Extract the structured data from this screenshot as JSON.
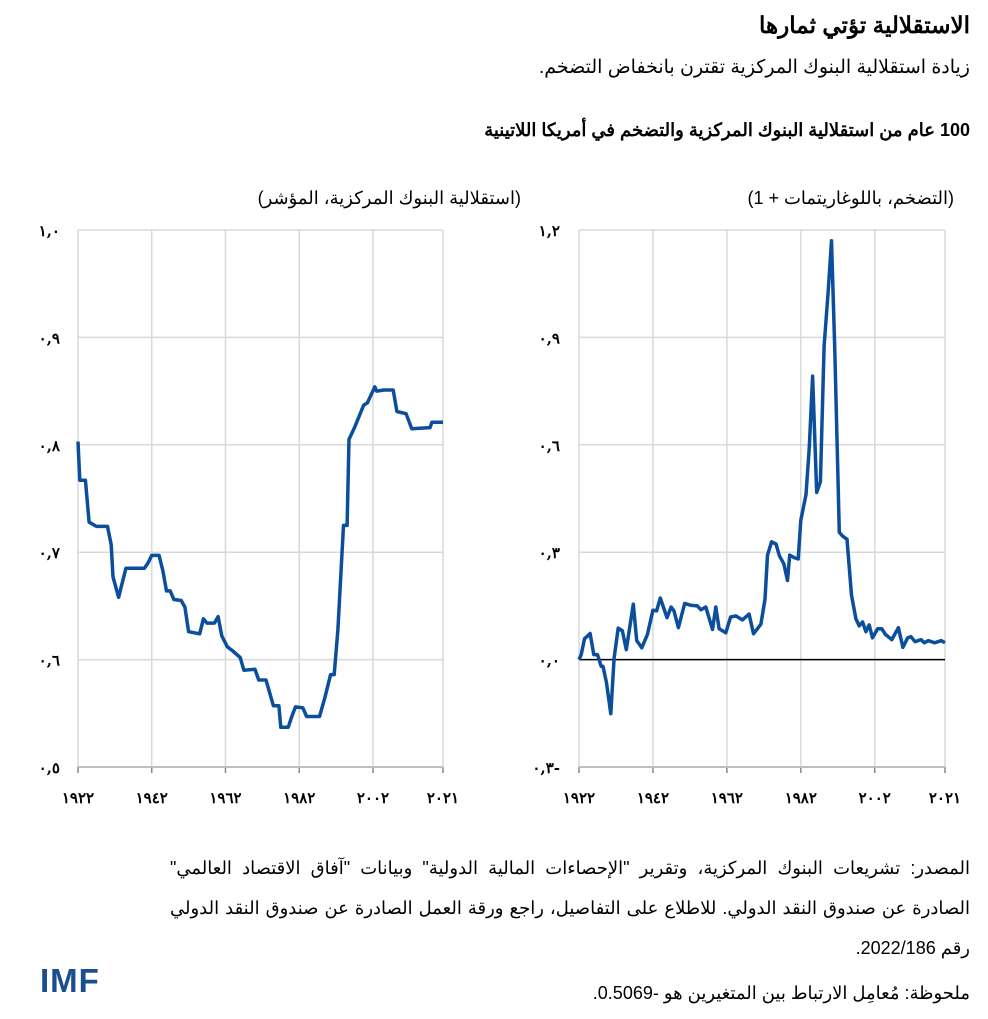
{
  "header": {
    "title": "الاستقلالية تؤتي ثمارها",
    "subtitle": "زيادة استقلالية البنوك المركزية تقترن بانخفاض التضخم."
  },
  "chart_title": "100 عام من استقلالية البنوك المركزية والتضخم في أمريكا اللاتينية",
  "colors": {
    "line": "#0b4e9c",
    "grid": "#d9d9d9",
    "zero_line": "#000000"
  },
  "chart_data": [
    {
      "type": "line",
      "ylabel": "(استقلالية البنوك المركزية، المؤشر)",
      "xlim": [
        1922,
        2021
      ],
      "ylim": [
        0.5,
        1.0
      ],
      "grid": true,
      "xticks": [
        1922,
        1942,
        1962,
        1982,
        2002,
        2021
      ],
      "xtick_labels": [
        "١٩٢٢",
        "١٩٤٢",
        "١٩٦٢",
        "١٩٨٢",
        "٢٠٠٢",
        "٢٠٢١"
      ],
      "yticks": [
        1.0,
        0.9,
        0.8,
        0.7,
        0.6,
        0.5
      ],
      "ytick_labels": [
        "١,٠",
        "٠,٩",
        "٠,٨",
        "٠,٧",
        "٠,٦",
        "٠,٥"
      ],
      "x": [
        1922,
        1922.5,
        1924,
        1925,
        1927,
        1930,
        1931,
        1931.5,
        1933,
        1935,
        1940,
        1941,
        1942,
        1944,
        1945,
        1946,
        1947,
        1948,
        1950,
        1951,
        1952,
        1955,
        1956,
        1957,
        1959,
        1960,
        1961,
        1962.5,
        1964,
        1966,
        1967,
        1970,
        1971,
        1973,
        1974,
        1975,
        1976.5,
        1977,
        1979,
        1980,
        1981,
        1983,
        1984,
        1987.5,
        1989,
        1990.5,
        1991.5,
        1992.5,
        1994,
        1995,
        1995.5,
        1997,
        1999.5,
        2000.5,
        2002.5,
        2003,
        2005,
        2007.5,
        2008.5,
        2011,
        2012.5,
        2017.5,
        2018,
        2021
      ],
      "y": [
        0.803,
        0.767,
        0.767,
        0.728,
        0.724,
        0.724,
        0.707,
        0.677,
        0.658,
        0.685,
        0.685,
        0.69,
        0.697,
        0.697,
        0.683,
        0.664,
        0.664,
        0.656,
        0.655,
        0.649,
        0.626,
        0.624,
        0.638,
        0.634,
        0.634,
        0.64,
        0.622,
        0.612,
        0.608,
        0.602,
        0.59,
        0.591,
        0.581,
        0.581,
        0.569,
        0.557,
        0.557,
        0.537,
        0.537,
        0.547,
        0.556,
        0.555,
        0.547,
        0.547,
        0.565,
        0.586,
        0.586,
        0.628,
        0.725,
        0.725,
        0.805,
        0.816,
        0.837,
        0.839,
        0.854,
        0.85,
        0.851,
        0.851,
        0.831,
        0.829,
        0.815,
        0.816,
        0.821,
        0.821
      ]
    },
    {
      "type": "line",
      "ylabel": "(التضخم، باللوغاريتمات + 1)",
      "xlim": [
        1922,
        2021
      ],
      "ylim": [
        -0.3,
        1.2
      ],
      "grid": true,
      "xticks": [
        1922,
        1942,
        1962,
        1982,
        2002,
        2021
      ],
      "xtick_labels": [
        "١٩٢٢",
        "١٩٤٢",
        "١٩٦٢",
        "١٩٨٢",
        "٢٠٠٢",
        "٢٠٢١"
      ],
      "yticks": [
        1.2,
        0.9,
        0.6,
        0.3,
        0.0,
        -0.3
      ],
      "ytick_labels": [
        "١,٢",
        "٠,٩",
        "٠,٦",
        "٠,٣",
        "٠,٠",
        "٠,٣-"
      ],
      "x": [
        1922,
        1922.6,
        1923.5,
        1925,
        1926,
        1927,
        1928,
        1928.5,
        1929.4,
        1930.6,
        1931.5,
        1932.6,
        1933.7,
        1934.8,
        1936.7,
        1937.6,
        1939,
        1940.5,
        1942,
        1943,
        1944,
        1945.8,
        1946.9,
        1947.7,
        1948.9,
        1950.6,
        1952.2,
        1954,
        1955,
        1956.3,
        1958.1,
        1959,
        1959.9,
        1961.7,
        1963,
        1964.4,
        1966.2,
        1968,
        1969.2,
        1971.2,
        1972.3,
        1973,
        1974.1,
        1975.3,
        1976.2,
        1977.4,
        1978.4,
        1979,
        1980.2,
        1981.3,
        1982,
        1983.4,
        1984.3,
        1985.2,
        1986.3,
        1987.3,
        1988.3,
        1989.4,
        1990.3,
        1991.2,
        1992.4,
        1993.3,
        1994.5,
        1995.7,
        1996.9,
        1997.8,
        1998.7,
        1999.6,
        2000.5,
        2001.4,
        2002.8,
        2003.9,
        2004.9,
        2006.6,
        2008.4,
        2009.6,
        2010.9,
        2011.8,
        2012.9,
        2014.5,
        2015.4,
        2016.5,
        2018.2,
        2020,
        2021
      ],
      "y": [
        0.0,
        0.014,
        0.058,
        0.073,
        0.014,
        0.014,
        -0.019,
        -0.019,
        -0.063,
        -0.151,
        0.004,
        0.088,
        0.081,
        0.028,
        0.155,
        0.053,
        0.033,
        0.07,
        0.138,
        0.136,
        0.172,
        0.117,
        0.147,
        0.136,
        0.089,
        0.157,
        0.152,
        0.15,
        0.139,
        0.147,
        0.084,
        0.147,
        0.086,
        0.075,
        0.119,
        0.122,
        0.111,
        0.127,
        0.072,
        0.099,
        0.169,
        0.292,
        0.329,
        0.323,
        0.29,
        0.268,
        0.221,
        0.292,
        0.285,
        0.281,
        0.389,
        0.461,
        0.593,
        0.792,
        0.467,
        0.497,
        0.875,
        1.029,
        1.17,
        0.864,
        0.356,
        0.345,
        0.336,
        0.18,
        0.114,
        0.094,
        0.105,
        0.078,
        0.097,
        0.061,
        0.086,
        0.086,
        0.07,
        0.056,
        0.089,
        0.034,
        0.061,
        0.064,
        0.05,
        0.056,
        0.047,
        0.053,
        0.047,
        0.053,
        0.047
      ]
    }
  ],
  "footer": {
    "source": "المصدر: تشريعات البنوك المركزية، وتقرير \"الإحصاءات المالية الدولية\" وبيانات \"آفاق الاقتصاد العالمي\" الصادرة عن صندوق النقد الدولي. للاطلاع على التفاصيل، راجع ورقة العمل الصادرة عن صندوق النقد الدولي رقم 2022/186.",
    "note": "ملحوظة: مُعامِل الارتباط بين المتغيرين هو -0.5069.",
    "logo": "IMF"
  }
}
